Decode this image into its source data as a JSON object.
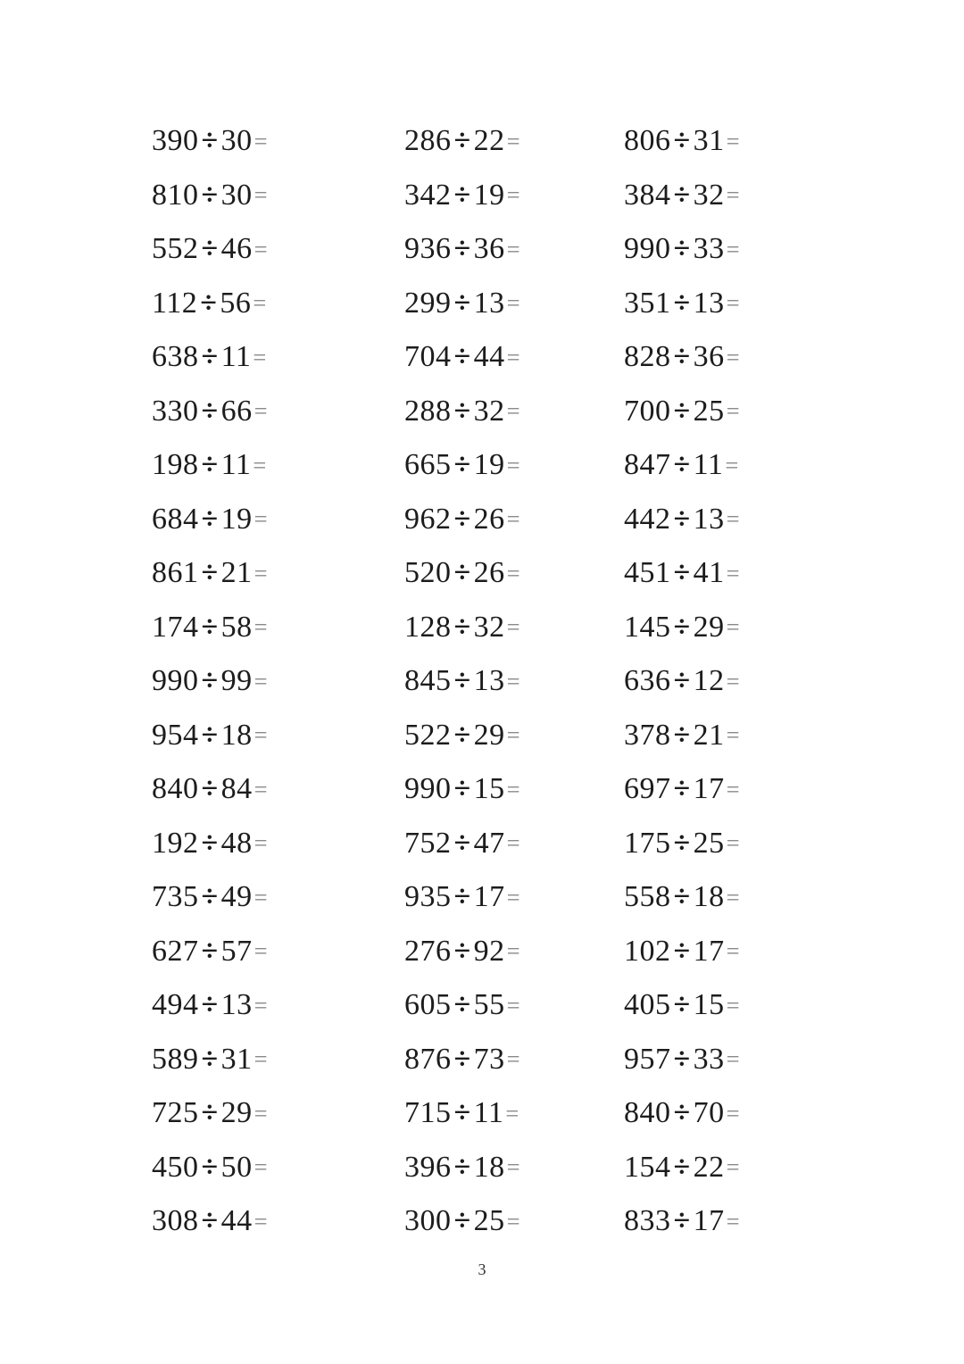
{
  "colors": {
    "background": "#ffffff",
    "text": "#1c1c1c",
    "equals_sign": "#8a8a8a"
  },
  "worksheet": {
    "operator": "÷",
    "equals": "=",
    "rows": [
      [
        {
          "dividend": "390",
          "divisor": "30"
        },
        {
          "dividend": "286",
          "divisor": "22"
        },
        {
          "dividend": "806",
          "divisor": "31"
        }
      ],
      [
        {
          "dividend": "810",
          "divisor": "30"
        },
        {
          "dividend": "342",
          "divisor": "19"
        },
        {
          "dividend": "384",
          "divisor": "32"
        }
      ],
      [
        {
          "dividend": "552",
          "divisor": "46"
        },
        {
          "dividend": "936",
          "divisor": "36"
        },
        {
          "dividend": "990",
          "divisor": "33"
        }
      ],
      [
        {
          "dividend": "112",
          "divisor": "56"
        },
        {
          "dividend": "299",
          "divisor": "13"
        },
        {
          "dividend": "351",
          "divisor": "13"
        }
      ],
      [
        {
          "dividend": "638",
          "divisor": "11"
        },
        {
          "dividend": "704",
          "divisor": "44"
        },
        {
          "dividend": "828",
          "divisor": "36"
        }
      ],
      [
        {
          "dividend": "330",
          "divisor": "66"
        },
        {
          "dividend": "288",
          "divisor": "32"
        },
        {
          "dividend": "700",
          "divisor": "25"
        }
      ],
      [
        {
          "dividend": "198",
          "divisor": "11"
        },
        {
          "dividend": "665",
          "divisor": "19"
        },
        {
          "dividend": "847",
          "divisor": "11"
        }
      ],
      [
        {
          "dividend": "684",
          "divisor": "19"
        },
        {
          "dividend": "962",
          "divisor": "26"
        },
        {
          "dividend": "442",
          "divisor": "13"
        }
      ],
      [
        {
          "dividend": "861",
          "divisor": "21"
        },
        {
          "dividend": "520",
          "divisor": "26"
        },
        {
          "dividend": "451",
          "divisor": "41"
        }
      ],
      [
        {
          "dividend": "174",
          "divisor": "58"
        },
        {
          "dividend": "128",
          "divisor": "32"
        },
        {
          "dividend": "145",
          "divisor": "29"
        }
      ],
      [
        {
          "dividend": "990",
          "divisor": "99"
        },
        {
          "dividend": "845",
          "divisor": "13"
        },
        {
          "dividend": "636",
          "divisor": "12"
        }
      ],
      [
        {
          "dividend": "954",
          "divisor": "18"
        },
        {
          "dividend": "522",
          "divisor": "29"
        },
        {
          "dividend": "378",
          "divisor": "21"
        }
      ],
      [
        {
          "dividend": "840",
          "divisor": "84"
        },
        {
          "dividend": "990",
          "divisor": "15"
        },
        {
          "dividend": "697",
          "divisor": "17"
        }
      ],
      [
        {
          "dividend": "192",
          "divisor": "48"
        },
        {
          "dividend": "752",
          "divisor": "47"
        },
        {
          "dividend": "175",
          "divisor": "25"
        }
      ],
      [
        {
          "dividend": "735",
          "divisor": "49"
        },
        {
          "dividend": "935",
          "divisor": "17"
        },
        {
          "dividend": "558",
          "divisor": "18"
        }
      ],
      [
        {
          "dividend": "627",
          "divisor": "57"
        },
        {
          "dividend": "276",
          "divisor": "92"
        },
        {
          "dividend": "102",
          "divisor": "17"
        }
      ],
      [
        {
          "dividend": "494",
          "divisor": "13"
        },
        {
          "dividend": "605",
          "divisor": "55"
        },
        {
          "dividend": "405",
          "divisor": "15"
        }
      ],
      [
        {
          "dividend": "589",
          "divisor": "31"
        },
        {
          "dividend": "876",
          "divisor": "73"
        },
        {
          "dividend": "957",
          "divisor": "33"
        }
      ],
      [
        {
          "dividend": "725",
          "divisor": "29"
        },
        {
          "dividend": "715",
          "divisor": "11"
        },
        {
          "dividend": "840",
          "divisor": "70"
        }
      ],
      [
        {
          "dividend": "450",
          "divisor": "50"
        },
        {
          "dividend": "396",
          "divisor": "18"
        },
        {
          "dividend": "154",
          "divisor": "22"
        }
      ],
      [
        {
          "dividend": "308",
          "divisor": "44"
        },
        {
          "dividend": "300",
          "divisor": "25"
        },
        {
          "dividend": "833",
          "divisor": "17"
        }
      ]
    ]
  },
  "footer": {
    "page_number": "3"
  }
}
